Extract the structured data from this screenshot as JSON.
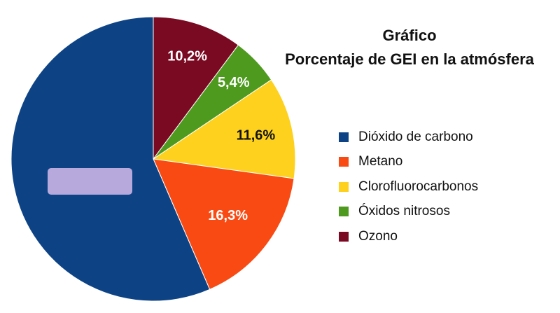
{
  "title": {
    "line1": "Gráfico",
    "line2": "Porcentaje de GEI en la atmósfera"
  },
  "chart_data": {
    "type": "pie",
    "start_angle": "top",
    "direction": "clockwise",
    "legend_position": "right",
    "slices": [
      {
        "name": "Ozono",
        "value": 10.2,
        "label": "10,2%",
        "color": "#7a0a22",
        "label_color": "#ffffff"
      },
      {
        "name": "Óxidos nitrosos",
        "value": 5.4,
        "label": "5,4%",
        "color": "#4e9a1f",
        "label_color": "#ffffff"
      },
      {
        "name": "Clorofluorocarbonos",
        "value": 11.6,
        "label": "11,6%",
        "color": "#fdd11d",
        "label_color": "#111111"
      },
      {
        "name": "Metano",
        "value": 16.3,
        "label": "16,3%",
        "color": "#f84a12",
        "label_color": "#ffffff"
      },
      {
        "name": "Dióxido de carbono",
        "value": 56.5,
        "label": "",
        "color": "#0d4385",
        "label_color": "#ffffff"
      }
    ],
    "hidden_label_box": {
      "slice": "Dióxido de carbono",
      "color": "#b8a9dc"
    }
  },
  "legend": {
    "items": [
      {
        "label": "Dióxido de carbono",
        "color": "#0d4385"
      },
      {
        "label": "Metano",
        "color": "#f84a12"
      },
      {
        "label": "Clorofluorocarbonos",
        "color": "#fdd11d"
      },
      {
        "label": "Óxidos nitrosos",
        "color": "#4e9a1f"
      },
      {
        "label": "Ozono",
        "color": "#7a0a22"
      }
    ]
  }
}
